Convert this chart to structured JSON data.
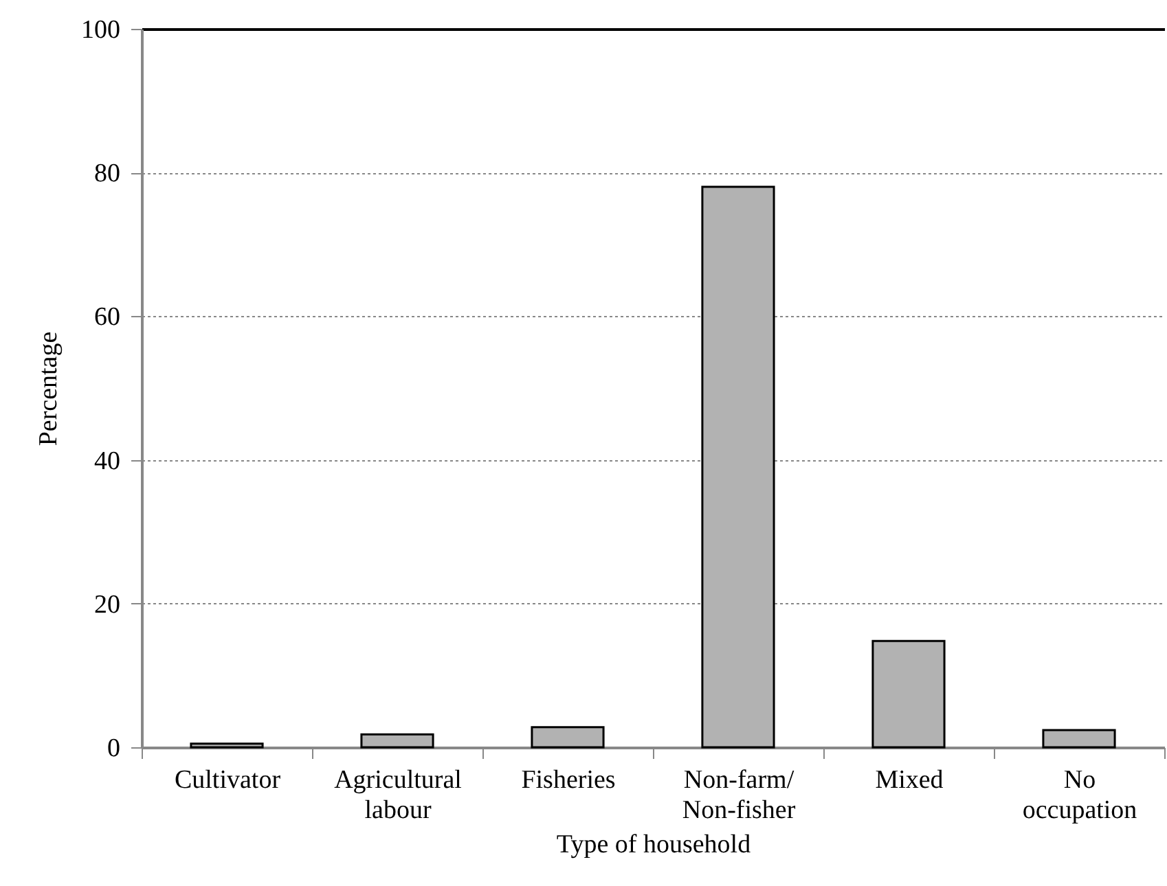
{
  "chart_data": {
    "type": "bar",
    "xlabel": "Type of household",
    "ylabel": "Percentage",
    "categories": [
      "Cultivator",
      "Agricultural labour",
      "Fisheries",
      "Non-farm/ Non-fisher",
      "Mixed",
      "No occupation"
    ],
    "values": [
      0.5,
      1.8,
      2.8,
      78,
      14.8,
      2.4
    ],
    "color": "#b2b2b2",
    "ylim": [
      0,
      100
    ],
    "yticks": [
      0,
      20,
      40,
      60,
      80,
      100
    ],
    "grid": "y"
  }
}
